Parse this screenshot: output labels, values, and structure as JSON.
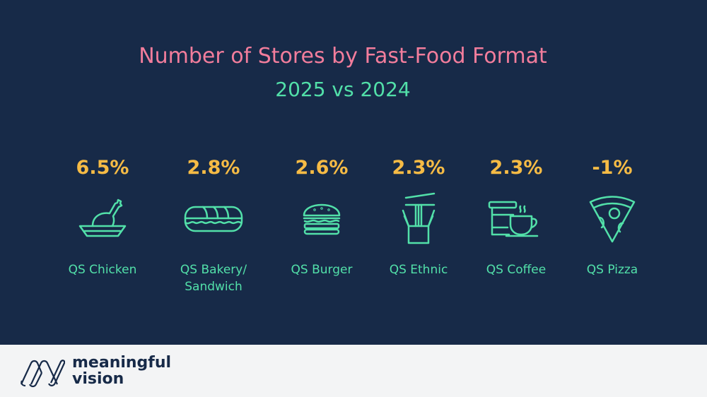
{
  "title": "Number of Stores by Fast-Food Format",
  "subtitle": "2025 vs 2024",
  "items": [
    {
      "value": "6.5%",
      "label": "QS Chicken",
      "icon": "chicken-icon"
    },
    {
      "value": "2.8%",
      "label": "QS Bakery/ Sandwich",
      "icon": "sandwich-icon"
    },
    {
      "value": "2.6%",
      "label": "QS Burger",
      "icon": "burger-icon"
    },
    {
      "value": "2.3%",
      "label": "QS Ethnic",
      "icon": "noodles-icon"
    },
    {
      "value": "2.3%",
      "label": "QS Coffee",
      "icon": "coffee-icon"
    },
    {
      "value": "-1%",
      "label": "QS Pizza",
      "icon": "pizza-icon"
    }
  ],
  "colors": {
    "background": "#172a48",
    "title": "#f27d9c",
    "accent": "#52e0a9",
    "value": "#f6bb45",
    "footer": "#f3f4f5"
  },
  "footer": {
    "brand_line1": "meaningful",
    "brand_line2": "vision"
  }
}
